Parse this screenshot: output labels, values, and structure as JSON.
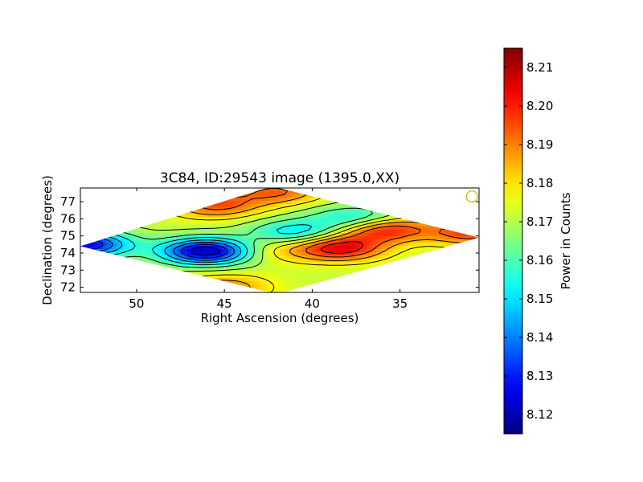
{
  "chart_data": {
    "type": "heatmap",
    "title": "3C84, ID:29543 image (1395.0,XX)",
    "xlabel": "Right Ascension (degrees)",
    "ylabel": "Declination (degrees)",
    "colorbar_label": "Power in Counts",
    "xlim": [
      53.2,
      30.5
    ],
    "ylim": [
      71.7,
      77.8
    ],
    "x_ticks": [
      50,
      45,
      40,
      35
    ],
    "x_tick_labels": [
      "50",
      "45",
      "40",
      "35"
    ],
    "y_ticks": [
      72,
      73,
      74,
      75,
      76,
      77
    ],
    "y_tick_labels": [
      "72",
      "73",
      "74",
      "75",
      "76",
      "77"
    ],
    "colorbar_range": [
      8.115,
      8.215
    ],
    "colorbar_ticks": [
      8.12,
      8.13,
      8.14,
      8.15,
      8.16,
      8.17,
      8.18,
      8.19,
      8.2,
      8.21
    ],
    "colorbar_tick_labels": [
      "8.12",
      "8.13",
      "8.14",
      "8.15",
      "8.16",
      "8.17",
      "8.18",
      "8.19",
      "8.20",
      "8.21"
    ],
    "colormap": "jet",
    "colormap_stops": [
      "#00007f",
      "#0000ff",
      "#00ffff",
      "#ffff00",
      "#ff0000",
      "#7f0000"
    ],
    "background_level": 8.172,
    "field_features": [
      {
        "ra": 46.0,
        "dec": 74.1,
        "level": 8.118,
        "kind": "minimum"
      },
      {
        "ra": 53.0,
        "dec": 74.5,
        "level": 8.125,
        "kind": "minimum"
      },
      {
        "ra": 41.0,
        "dec": 75.2,
        "level": 8.15,
        "kind": "minimum"
      },
      {
        "ra": 37.5,
        "dec": 76.0,
        "level": 8.15,
        "kind": "minimum"
      },
      {
        "ra": 38.5,
        "dec": 74.3,
        "level": 8.205,
        "kind": "maximum"
      },
      {
        "ra": 36.0,
        "dec": 75.4,
        "level": 8.203,
        "kind": "maximum"
      },
      {
        "ra": 30.8,
        "dec": 75.2,
        "level": 8.198,
        "kind": "maximum"
      },
      {
        "ra": 45.5,
        "dec": 76.8,
        "level": 8.195,
        "kind": "maximum"
      },
      {
        "ra": 42.0,
        "dec": 77.6,
        "level": 8.193,
        "kind": "maximum"
      },
      {
        "ra": 45.0,
        "dec": 72.0,
        "level": 8.19,
        "kind": "maximum"
      },
      {
        "ra": 42.5,
        "dec": 74.2,
        "level": 8.182,
        "kind": "maximum"
      }
    ],
    "marker": {
      "ra": 30.9,
      "dec": 77.3,
      "shape": "circle",
      "color": "#bfbf00"
    }
  }
}
